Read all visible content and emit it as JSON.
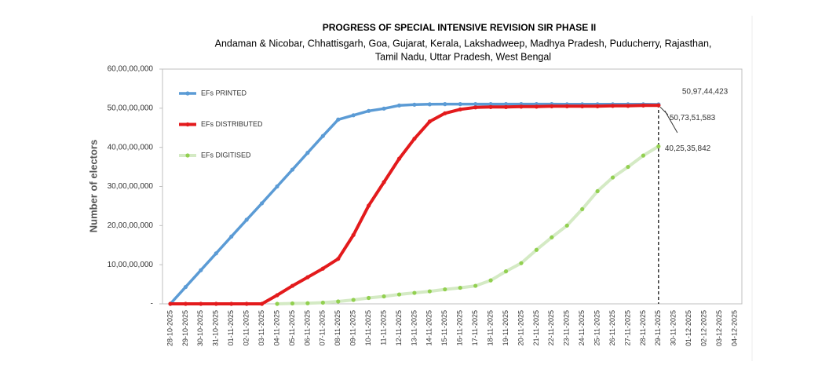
{
  "chart_data": {
    "type": "line",
    "title": "PROGRESS OF SPECIAL INTENSIVE REVISION SIR PHASE II",
    "subtitle": [
      "Andaman & Nicobar, Chhattisgarh, Goa, Gujarat, Kerala, Lakshadweep, Madhya Pradesh, Puducherry, Rajasthan,",
      "Tamil Nadu, Uttar Pradesh, West Bengal"
    ],
    "y_label": "Number of electors",
    "categories": [
      "28-10-2025",
      "29-10-2025",
      "30-10-2025",
      "31-10-2025",
      "01-11-2025",
      "02-11-2025",
      "03-11-2025",
      "04-11-2025",
      "05-11-2025",
      "06-11-2025",
      "07-11-2025",
      "08-11-2025",
      "09-11-2025",
      "10-11-2025",
      "11-11-2025",
      "12-11-2025",
      "13-11-2025",
      "14-11-2025",
      "15-11-2025",
      "16-11-2025",
      "17-11-2025",
      "18-11-2025",
      "19-11-2025",
      "20-11-2025",
      "21-11-2025",
      "22-11-2025",
      "23-11-2025",
      "24-11-2025",
      "25-11-2025",
      "26-11-2025",
      "27-11-2025",
      "28-11-2025",
      "29-11-2025",
      "30-11-2025",
      "01-12-2025",
      "02-12-2025",
      "03-12-2025",
      "04-12-2025"
    ],
    "series": [
      {
        "name": "EFs PRINTED",
        "color": "#5b9bd5",
        "marker_color": "#5b9bd5",
        "values": [
          0,
          43000000,
          86000000,
          129000000,
          172000000,
          215000000,
          257000000,
          300000000,
          343000000,
          386000000,
          429000000,
          471000000,
          482000000,
          493000000,
          499000000,
          507000000,
          509000000,
          510000000,
          510500000,
          510500000,
          510500000,
          510500000,
          510500000,
          510500000,
          510500000,
          510500000,
          510000000,
          510000000,
          510000000,
          510000000,
          510000000,
          510000000,
          509744423,
          null,
          null,
          null,
          null,
          null
        ],
        "value_labels": [
          null,
          null,
          null,
          null,
          null,
          null,
          null,
          null,
          null,
          null,
          null,
          null,
          null,
          null,
          null,
          null,
          null,
          null,
          null,
          null,
          null,
          null,
          null,
          null,
          null,
          null,
          null,
          null,
          null,
          null,
          null,
          null,
          "50,97,44,423",
          null,
          null,
          null,
          null,
          null
        ]
      },
      {
        "name": "EFs DISTRIBUTED",
        "color": "#e31a1c",
        "marker_color": "#e31a1c",
        "values": [
          0,
          0,
          0,
          0,
          0,
          0,
          0,
          22000000,
          46000000,
          68000000,
          90000000,
          115000000,
          176000000,
          251000000,
          311000000,
          371000000,
          422000000,
          466000000,
          487000000,
          497000000,
          502000000,
          503000000,
          503000000,
          504000000,
          504000000,
          505000000,
          505000000,
          505000000,
          505000000,
          506000000,
          506000000,
          507000000,
          507351583,
          null,
          null,
          null,
          null,
          null
        ],
        "value_labels": [
          null,
          null,
          null,
          null,
          null,
          null,
          null,
          null,
          null,
          null,
          null,
          null,
          null,
          null,
          null,
          null,
          null,
          null,
          null,
          null,
          null,
          null,
          null,
          null,
          null,
          null,
          null,
          null,
          null,
          null,
          null,
          null,
          "50,73,51,583",
          null,
          null,
          null,
          null,
          null
        ]
      },
      {
        "name": "EFs DIGITISED",
        "color": "#d4eac4",
        "marker_color": "#92d050",
        "values": [
          null,
          null,
          null,
          null,
          null,
          null,
          null,
          0,
          1000000,
          1500000,
          3000000,
          6000000,
          10000000,
          15000000,
          19000000,
          24000000,
          28000000,
          32000000,
          37000000,
          41000000,
          46000000,
          60000000,
          83000000,
          104000000,
          138000000,
          170000000,
          200000000,
          242000000,
          288000000,
          323000000,
          350000000,
          379000000,
          402535842,
          null,
          null,
          null,
          null,
          null
        ],
        "value_labels": [
          null,
          null,
          null,
          null,
          null,
          null,
          null,
          null,
          null,
          null,
          null,
          null,
          null,
          null,
          null,
          null,
          null,
          null,
          null,
          null,
          null,
          null,
          null,
          null,
          null,
          null,
          null,
          null,
          null,
          null,
          null,
          null,
          "40,25,35,842",
          null,
          null,
          null,
          null,
          null
        ]
      }
    ],
    "ylim": [
      0,
      600000000
    ],
    "yticks": [
      {
        "value": 0,
        "label": "-"
      },
      {
        "value": 100000000,
        "label": "10,00,00,000"
      },
      {
        "value": 200000000,
        "label": "20,00,00,000"
      },
      {
        "value": 300000000,
        "label": "30,00,00,000"
      },
      {
        "value": 400000000,
        "label": "40,00,00,000"
      },
      {
        "value": 500000000,
        "label": "50,00,00,000"
      },
      {
        "value": 600000000,
        "label": "60,00,00,000"
      }
    ],
    "grid": false,
    "legend": "upper-left"
  }
}
